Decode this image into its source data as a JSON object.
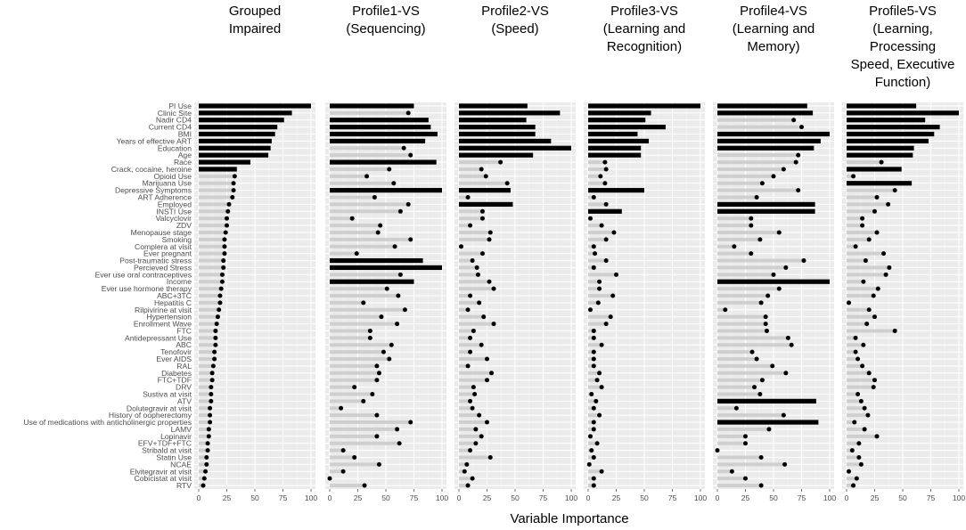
{
  "chart_data": {
    "type": "dot-bar",
    "xlabel": "Variable Importance",
    "xlim": [
      0,
      100
    ],
    "xticks": [
      "0",
      "25",
      "50",
      "75",
      "100"
    ],
    "variables": [
      "PI Use",
      "Clinic Site",
      "Nadir CD4",
      "Current CD4",
      "BMI",
      "Years of effective ART",
      "Education",
      "Age",
      "Race",
      "Crack, cocaine, heroine",
      "Opioid Use",
      "Marijuana Use",
      "Depressive Symptoms",
      "ART Adherence",
      "Employed",
      "INSTI Use",
      "Valcyclovir",
      "ZDV",
      "Menopause stage",
      "Smoking",
      "Complera at visit",
      "Ever pregnant",
      "Post-traumatic stress",
      "Percieved Stress",
      "Ever use oral contraceptives",
      "Income",
      "Ever use hormone therapy",
      "ABC+3TC",
      "Hepatitis C",
      "Rilpivirine at visit",
      "Hypertension",
      "Enrollment Wave",
      "FTC",
      "Antidepressant Use",
      "ABC",
      "Tenofovir",
      "Ever AIDS",
      "RAL",
      "Diabetes",
      "FTC+TDF",
      "DRV",
      "Sustiva at visit",
      "ATV",
      "Dolutegravir at visit",
      "History of oopherectomy",
      "Use of medications with anticholinergic properties",
      "LAMV",
      "Lopinavir",
      "EFV+TDF+FTC",
      "Stribald at visit",
      "Statin Use",
      "NCAE",
      "Elvitegravir at visit",
      "Cobicistat at visit",
      "RTV"
    ],
    "panels": [
      {
        "title": "Grouped Impaired",
        "values": [
          100,
          83,
          76,
          70,
          68,
          65,
          64,
          62,
          46,
          34,
          32,
          31,
          31,
          30,
          27,
          26,
          25,
          25,
          24,
          23,
          23,
          23,
          22,
          22,
          21,
          21,
          20,
          19,
          19,
          18,
          17,
          16,
          15,
          15,
          15,
          14,
          14,
          13,
          12,
          12,
          11,
          11,
          11,
          10,
          10,
          10,
          9,
          9,
          8,
          8,
          7,
          7,
          6,
          5,
          4
        ],
        "bars": [
          true,
          true,
          true,
          true,
          true,
          true,
          true,
          true,
          true,
          true,
          false,
          false,
          false,
          false,
          false,
          false,
          false,
          false,
          false,
          false,
          false,
          false,
          false,
          false,
          false,
          false,
          false,
          false,
          false,
          false,
          false,
          false,
          false,
          false,
          false,
          false,
          false,
          false,
          false,
          false,
          false,
          false,
          false,
          false,
          false,
          false,
          false,
          false,
          false,
          false,
          false,
          false,
          false,
          false,
          false
        ]
      },
      {
        "title": "Profile1-VS (Sequencing)",
        "values": [
          75,
          70,
          88,
          90,
          96,
          85,
          66,
          72,
          95,
          53,
          33,
          57,
          100,
          40,
          70,
          63,
          20,
          45,
          43,
          72,
          58,
          24,
          83,
          100,
          63,
          75,
          51,
          61,
          30,
          67,
          46,
          60,
          36,
          36,
          55,
          48,
          53,
          42,
          44,
          42,
          22,
          38,
          30,
          10,
          42,
          72,
          60,
          42,
          62,
          12,
          22,
          44,
          12,
          0,
          31
        ],
        "bars": [
          true,
          false,
          true,
          true,
          true,
          true,
          false,
          false,
          true,
          false,
          false,
          false,
          true,
          false,
          false,
          false,
          false,
          false,
          false,
          false,
          false,
          false,
          true,
          true,
          false,
          true,
          false,
          false,
          false,
          false,
          false,
          false,
          false,
          false,
          false,
          false,
          false,
          false,
          false,
          false,
          false,
          false,
          false,
          false,
          false,
          false,
          false,
          false,
          false,
          false,
          false,
          false,
          false,
          false,
          false
        ]
      },
      {
        "title": "Profile2-VS (Speed)",
        "values": [
          61,
          90,
          60,
          68,
          68,
          82,
          100,
          66,
          37,
          20,
          24,
          43,
          46,
          8,
          48,
          21,
          21,
          10,
          28,
          27,
          2,
          21,
          12,
          16,
          17,
          27,
          31,
          10,
          18,
          8,
          22,
          31,
          13,
          10,
          20,
          10,
          25,
          8,
          29,
          25,
          13,
          14,
          10,
          12,
          18,
          25,
          15,
          20,
          15,
          10,
          28,
          7,
          5,
          12,
          8
        ],
        "bars": [
          true,
          true,
          true,
          true,
          true,
          true,
          true,
          true,
          false,
          false,
          false,
          false,
          true,
          false,
          true,
          false,
          false,
          false,
          false,
          false,
          false,
          false,
          false,
          false,
          false,
          false,
          false,
          false,
          false,
          false,
          false,
          false,
          false,
          false,
          false,
          false,
          false,
          false,
          false,
          false,
          false,
          false,
          false,
          false,
          false,
          false,
          false,
          false,
          false,
          false,
          false,
          false,
          false,
          false,
          false
        ]
      },
      {
        "title": "Profile3-VS (Learning and Recognition)",
        "values": [
          100,
          56,
          51,
          69,
          44,
          54,
          47,
          47,
          15,
          16,
          11,
          15,
          50,
          5,
          16,
          30,
          2,
          12,
          23,
          16,
          5,
          6,
          16,
          5,
          25,
          10,
          10,
          22,
          9,
          2,
          20,
          16,
          5,
          5,
          12,
          5,
          5,
          5,
          10,
          8,
          12,
          3,
          7,
          5,
          10,
          5,
          5,
          2,
          8,
          3,
          5,
          1,
          12,
          5,
          5
        ],
        "bars": [
          true,
          true,
          true,
          true,
          true,
          true,
          true,
          true,
          false,
          false,
          false,
          false,
          true,
          false,
          false,
          true,
          false,
          false,
          false,
          false,
          false,
          false,
          false,
          false,
          false,
          false,
          false,
          false,
          false,
          false,
          false,
          false,
          false,
          false,
          false,
          false,
          false,
          false,
          false,
          false,
          false,
          false,
          false,
          false,
          false,
          false,
          false,
          false,
          false,
          false,
          false,
          false,
          false,
          false,
          false
        ]
      },
      {
        "title": "Profile4-VS (Learning and Memory)",
        "values": [
          80,
          85,
          68,
          75,
          100,
          92,
          86,
          72,
          70,
          59,
          50,
          40,
          72,
          35,
          87,
          87,
          30,
          30,
          55,
          38,
          15,
          30,
          77,
          61,
          50,
          100,
          55,
          45,
          39,
          7,
          43,
          43,
          44,
          63,
          66,
          31,
          35,
          49,
          61,
          40,
          33,
          38,
          88,
          17,
          59,
          90,
          46,
          25,
          25,
          0,
          39,
          60,
          13,
          25,
          39
        ],
        "bars": [
          true,
          true,
          false,
          false,
          true,
          true,
          true,
          false,
          false,
          false,
          false,
          false,
          false,
          false,
          true,
          true,
          false,
          false,
          false,
          false,
          false,
          false,
          false,
          false,
          false,
          true,
          false,
          false,
          false,
          false,
          false,
          false,
          false,
          false,
          false,
          false,
          false,
          false,
          false,
          false,
          false,
          false,
          true,
          false,
          false,
          true,
          false,
          false,
          false,
          false,
          false,
          false,
          false,
          false,
          false
        ]
      },
      {
        "title": "Profile5-VS (Learning, Processing Speed, Executive Function)",
        "values": [
          62,
          100,
          70,
          83,
          78,
          73,
          60,
          59,
          31,
          49,
          6,
          58,
          43,
          27,
          37,
          25,
          14,
          14,
          27,
          20,
          8,
          33,
          17,
          38,
          35,
          15,
          28,
          24,
          2,
          20,
          25,
          18,
          43,
          8,
          15,
          8,
          10,
          14,
          20,
          25,
          24,
          10,
          13,
          16,
          19,
          7,
          16,
          27,
          11,
          5,
          11,
          13,
          2,
          9,
          6
        ],
        "bars": [
          true,
          true,
          true,
          true,
          true,
          true,
          true,
          true,
          false,
          true,
          false,
          true,
          false,
          false,
          false,
          false,
          false,
          false,
          false,
          false,
          false,
          false,
          false,
          false,
          false,
          false,
          false,
          false,
          false,
          false,
          false,
          false,
          false,
          false,
          false,
          false,
          false,
          false,
          false,
          false,
          false,
          false,
          false,
          false,
          false,
          false,
          false,
          false,
          false,
          false,
          false,
          false,
          false,
          false,
          false
        ]
      }
    ]
  }
}
